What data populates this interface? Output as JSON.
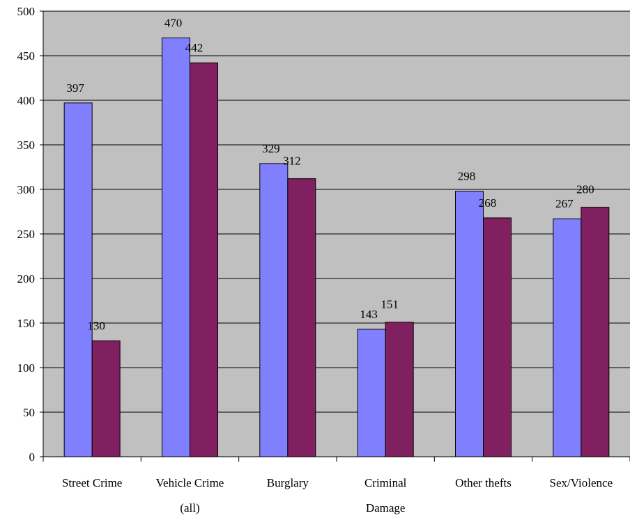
{
  "chart_data": {
    "type": "bar",
    "categories": [
      [
        "Street Crime"
      ],
      [
        "Vehicle Crime",
        "(all)"
      ],
      [
        "Burglary"
      ],
      [
        "Criminal",
        "Damage"
      ],
      [
        "Other thefts"
      ],
      [
        "Sex/Violence"
      ]
    ],
    "series": [
      {
        "values": [
          397,
          470,
          329,
          143,
          298,
          267
        ],
        "color": "#8080ff"
      },
      {
        "values": [
          130,
          442,
          312,
          151,
          268,
          280
        ],
        "color": "#802060"
      }
    ],
    "ylim": [
      0,
      500
    ],
    "yticks": [
      "0",
      "50",
      "100",
      "150",
      "200",
      "250",
      "300",
      "350",
      "400",
      "450",
      "500"
    ],
    "grid": true,
    "plot_background": "#c0c0c0",
    "legend": "none",
    "title": "",
    "xlabel": "",
    "ylabel": ""
  }
}
